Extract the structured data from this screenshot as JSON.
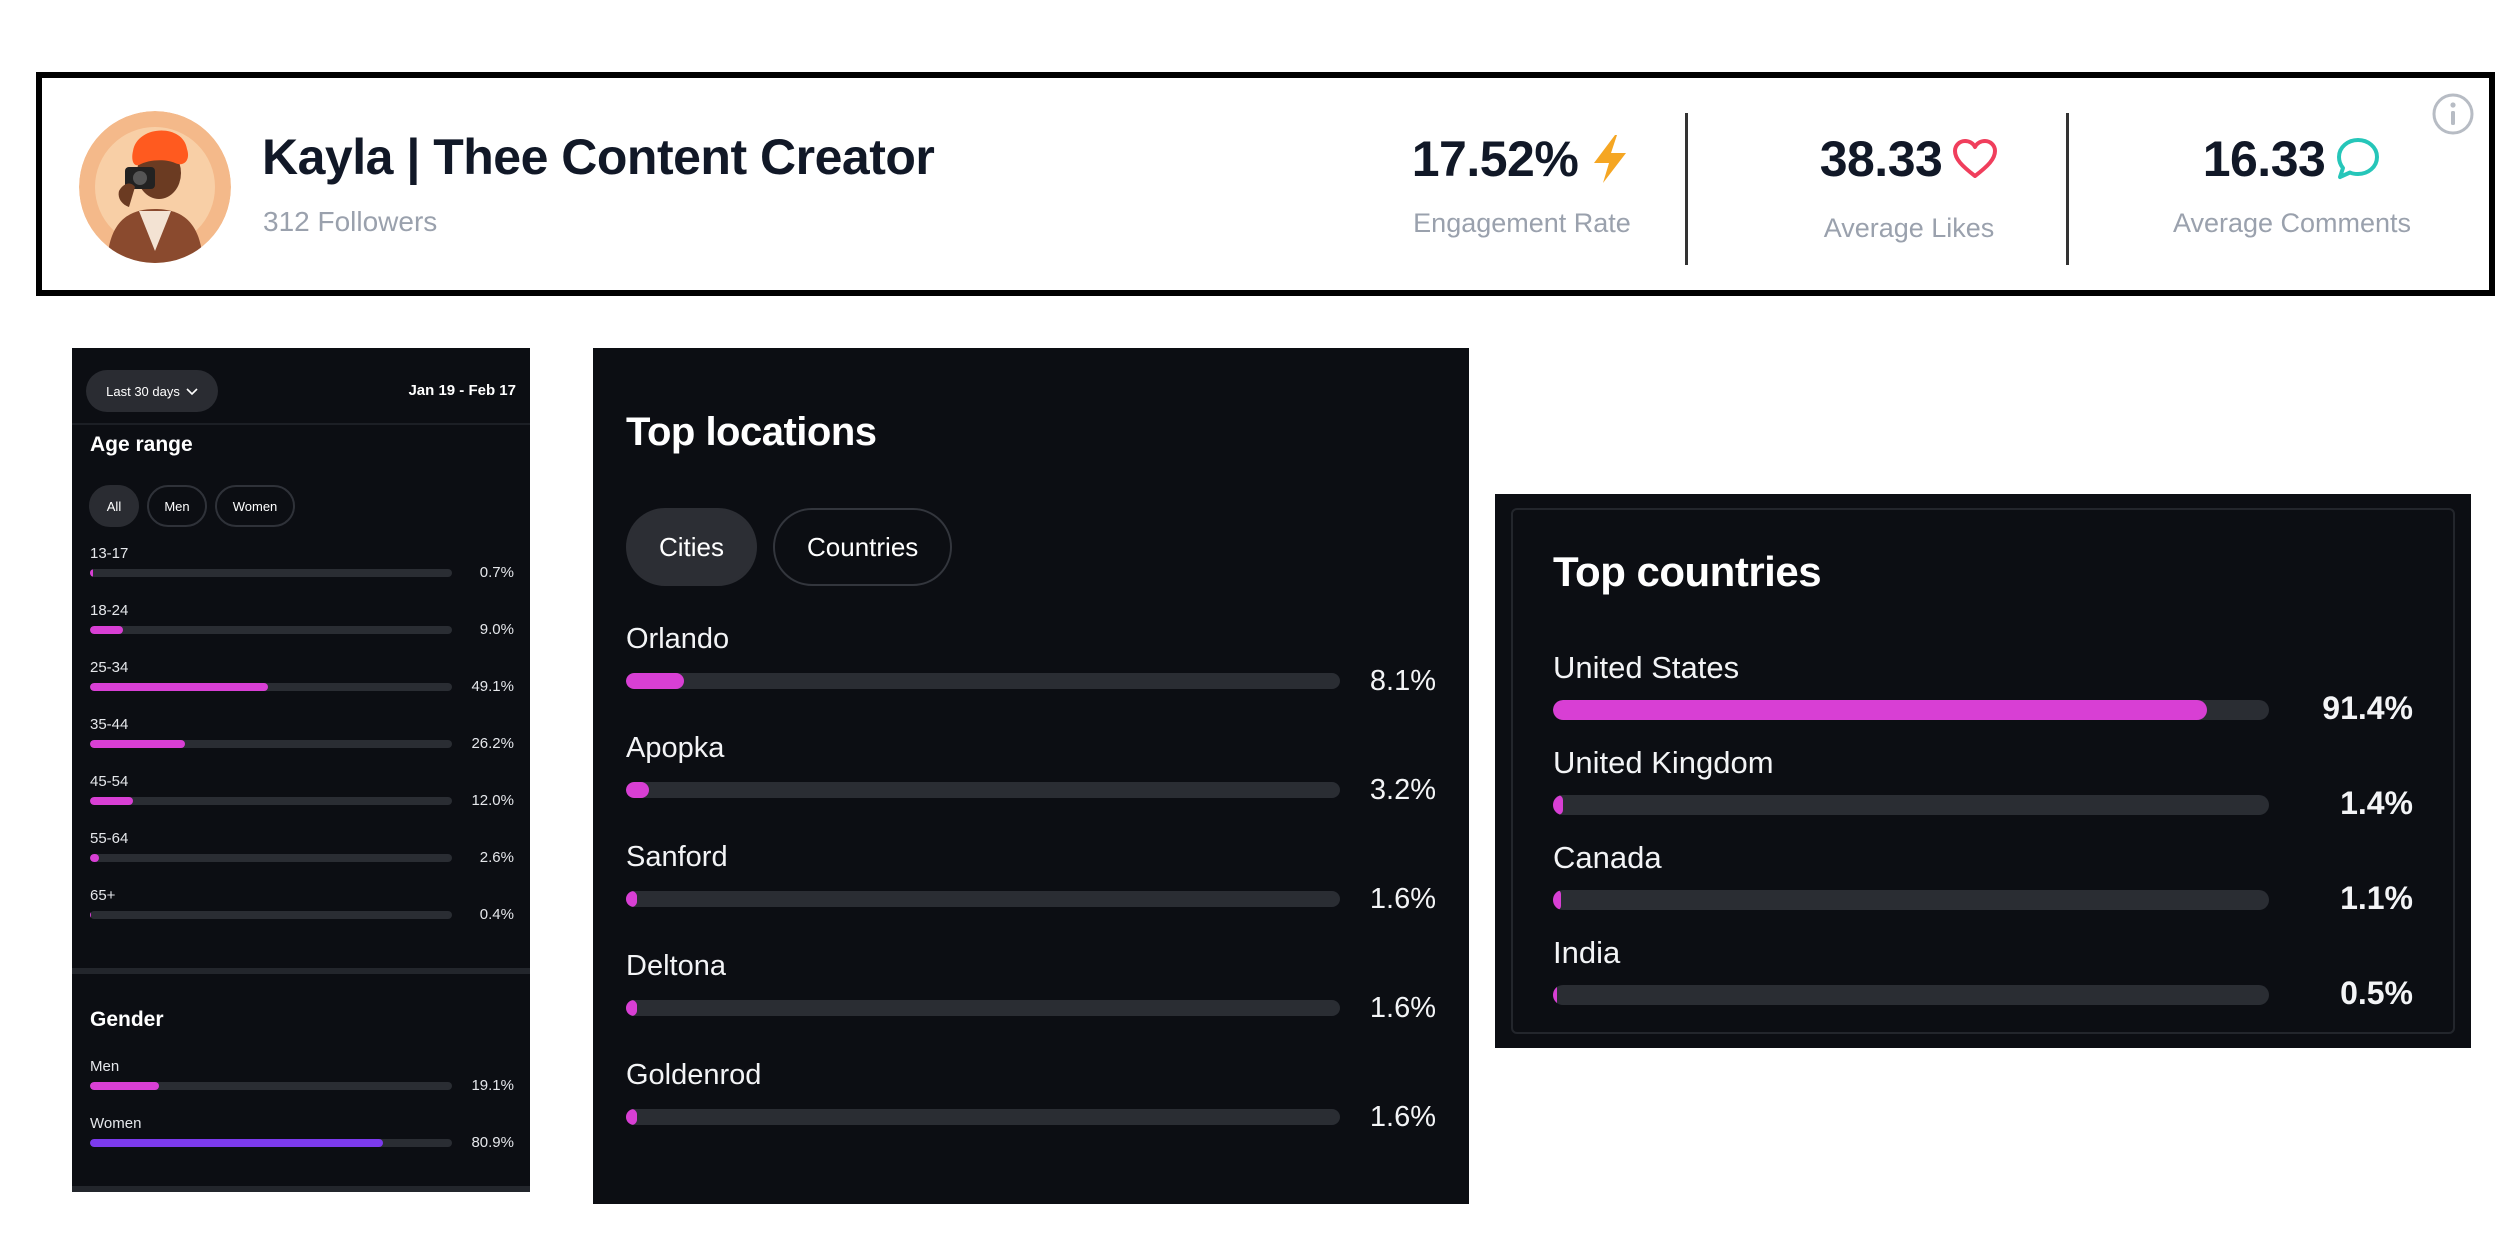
{
  "profile": {
    "name": "Kayla | Thee Content Creator",
    "followers": "312 Followers",
    "metrics": [
      {
        "value": "17.52%",
        "label": "Engagement Rate",
        "icon": "lightning-bolt-icon",
        "color": "#f5a623"
      },
      {
        "value": "38.33",
        "label": "Average Likes",
        "icon": "heart-icon",
        "color": "#f03e5c"
      },
      {
        "value": "16.33",
        "label": "Average Comments",
        "icon": "speech-bubble-icon",
        "color": "#26c6b9"
      }
    ],
    "info_icon": "info-icon"
  },
  "audience": {
    "range_selector": "Last 30 days",
    "date_range": "Jan 19 - Feb 17",
    "age": {
      "title": "Age range",
      "filters": [
        "All",
        "Men",
        "Women"
      ],
      "active_filter": "All",
      "rows": [
        {
          "label": "13-17",
          "value": "0.7%",
          "percent": 0.7
        },
        {
          "label": "18-24",
          "value": "9.0%",
          "percent": 9.0
        },
        {
          "label": "25-34",
          "value": "49.1%",
          "percent": 49.1
        },
        {
          "label": "35-44",
          "value": "26.2%",
          "percent": 26.2
        },
        {
          "label": "45-54",
          "value": "12.0%",
          "percent": 12.0
        },
        {
          "label": "55-64",
          "value": "2.6%",
          "percent": 2.6
        },
        {
          "label": "65+",
          "value": "0.4%",
          "percent": 0.4
        }
      ],
      "bar_color": "#d83fd4"
    },
    "gender": {
      "title": "Gender",
      "rows": [
        {
          "label": "Men",
          "value": "19.1%",
          "percent": 19.1,
          "color": "#d83fd4"
        },
        {
          "label": "Women",
          "value": "80.9%",
          "percent": 80.9,
          "color": "#7c3aed"
        }
      ]
    }
  },
  "locations": {
    "title": "Top locations",
    "tabs": [
      "Cities",
      "Countries"
    ],
    "active_tab": "Cities",
    "rows": [
      {
        "label": "Orlando",
        "value": "8.1%",
        "percent": 8.1
      },
      {
        "label": "Apopka",
        "value": "3.2%",
        "percent": 3.2
      },
      {
        "label": "Sanford",
        "value": "1.6%",
        "percent": 1.6
      },
      {
        "label": "Deltona",
        "value": "1.6%",
        "percent": 1.6
      },
      {
        "label": "Goldenrod",
        "value": "1.6%",
        "percent": 1.6
      }
    ],
    "bar_color": "#d83fd4"
  },
  "countries": {
    "title": "Top countries",
    "rows": [
      {
        "label": "United States",
        "value": "91.4%",
        "percent": 91.4
      },
      {
        "label": "United Kingdom",
        "value": "1.4%",
        "percent": 1.4
      },
      {
        "label": "Canada",
        "value": "1.1%",
        "percent": 1.1
      },
      {
        "label": "India",
        "value": "0.5%",
        "percent": 0.5
      }
    ],
    "bar_color": "#d83fd4"
  }
}
